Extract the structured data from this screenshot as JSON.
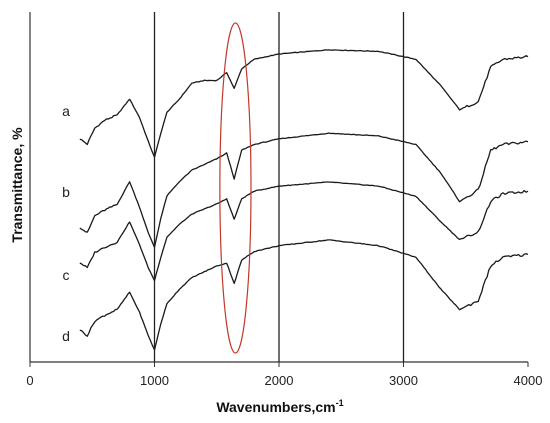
{
  "chart_data": {
    "type": "line",
    "xlabel_main": "Wavenumbers,cm",
    "xlabel_sup": "-1",
    "ylabel": "Transmittance, %",
    "xlim": [
      0,
      4000
    ],
    "x_ticks": [
      "0",
      "1000",
      "2000",
      "3000",
      "4000"
    ],
    "reference_lines_x": [
      1000,
      2000,
      3000
    ],
    "highlight_ellipse": {
      "center_x": 1650,
      "width_x": 250,
      "color": "#c0392b"
    },
    "series": [
      {
        "name": "a",
        "x": [
          400,
          460,
          520,
          600,
          700,
          800,
          880,
          950,
          1000,
          1050,
          1100,
          1200,
          1300,
          1400,
          1500,
          1580,
          1640,
          1700,
          1800,
          2000,
          2400,
          2800,
          3100,
          3300,
          3450,
          3600,
          3700,
          3800,
          4000
        ],
        "y": [
          0.4,
          0.3,
          0.6,
          0.75,
          0.85,
          1.15,
          0.8,
          0.35,
          0.05,
          0.5,
          0.9,
          1.15,
          1.45,
          1.5,
          1.5,
          1.65,
          1.35,
          1.72,
          1.9,
          2.0,
          2.08,
          2.05,
          1.9,
          1.4,
          0.95,
          1.1,
          1.75,
          1.9,
          1.95
        ]
      },
      {
        "name": "b",
        "x": [
          400,
          460,
          520,
          600,
          700,
          800,
          880,
          950,
          1000,
          1050,
          1100,
          1200,
          1300,
          1400,
          1500,
          1580,
          1640,
          1700,
          1800,
          2000,
          2400,
          2800,
          3100,
          3300,
          3450,
          3600,
          3700,
          3800,
          4000
        ],
        "y": [
          0.4,
          0.3,
          0.6,
          0.7,
          0.8,
          1.2,
          0.75,
          0.3,
          0.05,
          0.55,
          0.95,
          1.2,
          1.4,
          1.5,
          1.6,
          1.7,
          1.25,
          1.75,
          1.85,
          1.95,
          2.05,
          2.0,
          1.85,
          1.35,
          0.85,
          1.05,
          1.75,
          1.85,
          1.9
        ]
      },
      {
        "name": "c",
        "x": [
          400,
          460,
          520,
          600,
          700,
          800,
          880,
          950,
          1000,
          1050,
          1100,
          1200,
          1300,
          1400,
          1500,
          1580,
          1640,
          1700,
          1800,
          2000,
          2400,
          2800,
          3100,
          3300,
          3450,
          3600,
          3700,
          3800,
          4000
        ],
        "y": [
          0.4,
          0.3,
          0.6,
          0.7,
          0.8,
          1.2,
          0.75,
          0.3,
          0.05,
          0.5,
          0.9,
          1.15,
          1.35,
          1.45,
          1.55,
          1.65,
          1.25,
          1.65,
          1.8,
          1.9,
          1.98,
          1.9,
          1.7,
          1.2,
          0.85,
          1.0,
          1.6,
          1.75,
          1.8
        ]
      },
      {
        "name": "d",
        "x": [
          400,
          460,
          520,
          600,
          700,
          800,
          880,
          950,
          1000,
          1050,
          1100,
          1200,
          1300,
          1400,
          1500,
          1580,
          1640,
          1700,
          1800,
          2000,
          2400,
          2800,
          3100,
          3300,
          3450,
          3600,
          3700,
          3800,
          4000
        ],
        "y": [
          0.4,
          0.3,
          0.55,
          0.65,
          0.75,
          1.05,
          0.7,
          0.3,
          0.05,
          0.5,
          0.85,
          1.1,
          1.3,
          1.4,
          1.5,
          1.55,
          1.2,
          1.6,
          1.75,
          1.85,
          1.95,
          1.85,
          1.65,
          1.1,
          0.75,
          0.9,
          1.5,
          1.65,
          1.7
        ]
      }
    ],
    "colors": {
      "line": "#1a1a1a",
      "axis": "#333333",
      "ellipse": "#c0392b"
    }
  }
}
